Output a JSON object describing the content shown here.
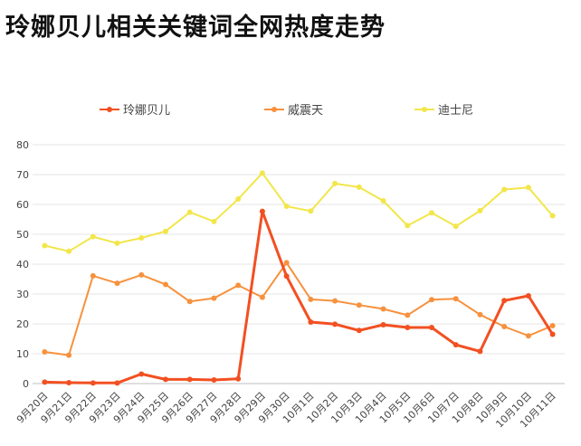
{
  "chart_data": {
    "type": "line",
    "title": "玲娜贝儿相关关键词全网热度走势",
    "xlabel": "",
    "ylabel": "",
    "ylim": [
      0,
      80
    ],
    "yticks": [
      0,
      10,
      20,
      30,
      40,
      50,
      60,
      70,
      80
    ],
    "grid": true,
    "legend_position": "top",
    "categories": [
      "9月20日",
      "9月21日",
      "9月22日",
      "9月23日",
      "9月24日",
      "9月25日",
      "9月26日",
      "9月27日",
      "9月28日",
      "9月29日",
      "9月30日",
      "10月1日",
      "10月2日",
      "10月3日",
      "10月4日",
      "10月5日",
      "10月6日",
      "10月7日",
      "10月8日",
      "10月9日",
      "10月10日",
      "10月11日"
    ],
    "series": [
      {
        "name": "玲娜贝儿",
        "color": "#F25022",
        "values": [
          0.5,
          0.3,
          0.2,
          0.2,
          3.2,
          1.4,
          1.4,
          1.2,
          1.6,
          57.7,
          36,
          20.6,
          19.9,
          17.8,
          19.7,
          18.8,
          18.8,
          13,
          10.8,
          27.8,
          29.4,
          16.5
        ]
      },
      {
        "name": "威震天",
        "color": "#F7913D",
        "values": [
          10.6,
          9.5,
          36.1,
          33.6,
          36.4,
          33.2,
          27.5,
          28.6,
          32.9,
          28.9,
          40.5,
          28.2,
          27.7,
          26.3,
          25,
          22.9,
          28.1,
          28.4,
          23.1,
          19.1,
          16,
          19.4
        ]
      },
      {
        "name": "迪士尼",
        "color": "#F2E64A",
        "values": [
          46.2,
          44.3,
          49.2,
          47,
          48.8,
          51,
          57.4,
          54.3,
          61.8,
          70.5,
          59.4,
          57.8,
          67,
          65.8,
          61.2,
          52.9,
          57.2,
          52.7,
          57.9,
          65,
          65.7,
          56.2
        ]
      }
    ]
  }
}
